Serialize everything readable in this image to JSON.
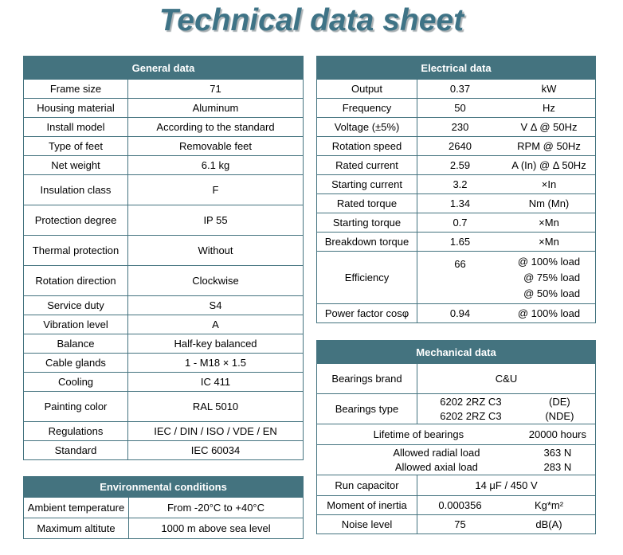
{
  "title": "Technical data sheet",
  "colors": {
    "teal": "#44737f",
    "title": "#3e7386",
    "header_text": "#ffffff"
  },
  "general": {
    "header": "General data",
    "rows": [
      {
        "label": "Frame size",
        "value": "71"
      },
      {
        "label": "Housing material",
        "value": "Aluminum"
      },
      {
        "label": "Install model",
        "value": "According to the standard"
      },
      {
        "label": "Type of feet",
        "value": "Removable feet"
      },
      {
        "label": "Net weight",
        "value": "6.1 kg"
      },
      {
        "label": "Insulation class",
        "value": "F"
      },
      {
        "label": "Protection degree",
        "value": "IP 55"
      },
      {
        "label": "Thermal protection",
        "value": "Without"
      },
      {
        "label": "Rotation direction",
        "value": "Clockwise"
      },
      {
        "label": "Service duty",
        "value": "S4"
      },
      {
        "label": "Vibration level",
        "value": "A"
      },
      {
        "label": "Balance",
        "value": "Half-key balanced"
      },
      {
        "label": "Cable glands",
        "value": "1 - M18 × 1.5"
      },
      {
        "label": "Cooling",
        "value": "IC 411"
      },
      {
        "label": "Painting color",
        "value": "RAL 5010"
      },
      {
        "label": "Regulations",
        "value": "IEC / DIN / ISO / VDE / EN"
      },
      {
        "label": "Standard",
        "value": "IEC 60034"
      }
    ]
  },
  "environmental": {
    "header": "Environmental conditions",
    "rows": [
      {
        "label": "Ambient temperature",
        "value": "From -20°C to +40°C"
      },
      {
        "label": "Maximum altitute",
        "value": "1000 m above sea level"
      }
    ]
  },
  "electrical": {
    "header": "Electrical data",
    "rows": [
      {
        "label": "Output",
        "value": "0.37",
        "unit": "kW"
      },
      {
        "label": "Frequency",
        "value": "50",
        "unit": "Hz"
      },
      {
        "label": "Voltage (±5%)",
        "value": "230",
        "unit": "V Δ @ 50Hz"
      },
      {
        "label": "Rotation speed",
        "value": "2640",
        "unit": "RPM @ 50Hz"
      },
      {
        "label": "Rated current",
        "value": "2.59",
        "unit": "A (In) @ Δ 50Hz"
      },
      {
        "label": "Starting current",
        "value": "3.2",
        "unit": "×In"
      },
      {
        "label": "Rated torque",
        "value": "1.34",
        "unit": "Nm (Mn)"
      },
      {
        "label": "Starting torque",
        "value": "0.7",
        "unit": "×Mn"
      },
      {
        "label": "Breakdown torque",
        "value": "1.65",
        "unit": "×Mn"
      },
      {
        "label": "Efficiency",
        "value": "66",
        "unit_lines": [
          "@ 100% load",
          "@ 75% load",
          "@ 50% load"
        ]
      },
      {
        "label": "Power factor cosφ",
        "value": "0.94",
        "unit": "@ 100% load"
      }
    ]
  },
  "mechanical": {
    "header": "Mechanical data",
    "bearings_brand": {
      "label": "Bearings brand",
      "value": "C&U"
    },
    "bearings_type": {
      "label": "Bearings type",
      "rows": [
        {
          "value": "6202 2RZ C3",
          "side": "(DE)"
        },
        {
          "value": "6202 2RZ C3",
          "side": "(NDE)"
        }
      ]
    },
    "lifetime": {
      "label": "Lifetime of bearings",
      "value": "20000 hours"
    },
    "allowed_loads": {
      "rows": [
        {
          "label": "Allowed radial load",
          "value": "363 N"
        },
        {
          "label": "Allowed axial load",
          "value": "283 N"
        }
      ]
    },
    "run_capacitor": {
      "label": "Run capacitor",
      "value": "14 μF / 450 V"
    },
    "moment_of_inertia": {
      "label": "Moment of inertia",
      "value": "0.000356",
      "unit": "Kg*m²"
    },
    "noise_level": {
      "label": "Noise level",
      "value": "75",
      "unit": "dB(A)"
    }
  }
}
